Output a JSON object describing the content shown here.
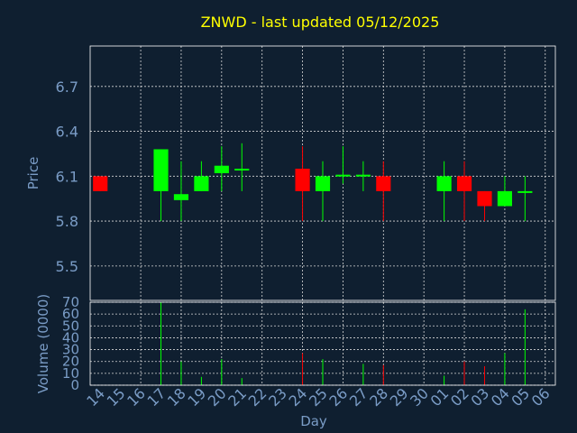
{
  "chart_data": {
    "type": "candlestick",
    "title": "ZNWD - last updated 05/12/2025",
    "xlabel": "Day",
    "ylabel": "Price",
    "volume_label": "Volume (0000)",
    "price_ylim": [
      5.27,
      6.97
    ],
    "price_ticks": [
      5.5,
      5.8,
      6.1,
      6.4,
      6.7
    ],
    "volume_ylim": [
      0,
      70
    ],
    "volume_ticks": [
      0,
      10,
      20,
      30,
      40,
      50,
      60,
      70
    ],
    "grid": true,
    "x_ticks": [
      "14",
      "15",
      "16",
      "17",
      "18",
      "19",
      "20",
      "21",
      "22",
      "23",
      "24",
      "25",
      "26",
      "27",
      "28",
      "29",
      "30",
      "01",
      "02",
      "03",
      "04",
      "05",
      "06"
    ],
    "colors": {
      "up": "#00ff00",
      "down": "#ff0000",
      "title": "#ffff00",
      "axis": "#7a9cc6"
    },
    "candles": [
      {
        "day": "14",
        "open": 6.1,
        "high": 6.1,
        "low": 6.0,
        "close": 6.0,
        "volume": 0
      },
      {
        "day": "17",
        "open": 6.0,
        "high": 6.28,
        "low": 5.8,
        "close": 6.28,
        "volume": 70
      },
      {
        "day": "18",
        "open": 5.94,
        "high": 6.2,
        "low": 5.8,
        "close": 5.98,
        "volume": 20
      },
      {
        "day": "19",
        "open": 6.0,
        "high": 6.2,
        "low": 6.0,
        "close": 6.1,
        "volume": 7
      },
      {
        "day": "20",
        "open": 6.12,
        "high": 6.3,
        "low": 6.0,
        "close": 6.17,
        "volume": 22
      },
      {
        "day": "21",
        "open": 6.14,
        "high": 6.32,
        "low": 6.0,
        "close": 6.15,
        "volume": 6
      },
      {
        "day": "24",
        "open": 6.15,
        "high": 6.3,
        "low": 5.8,
        "close": 6.0,
        "volume": 27
      },
      {
        "day": "25",
        "open": 6.0,
        "high": 6.2,
        "low": 5.8,
        "close": 6.1,
        "volume": 22
      },
      {
        "day": "26",
        "open": 6.1,
        "high": 6.3,
        "low": 6.05,
        "close": 6.11,
        "volume": 0
      },
      {
        "day": "27",
        "open": 6.1,
        "high": 6.2,
        "low": 6.0,
        "close": 6.11,
        "volume": 18
      },
      {
        "day": "28",
        "open": 6.1,
        "high": 6.2,
        "low": 5.8,
        "close": 6.0,
        "volume": 17
      },
      {
        "day": "01",
        "open": 6.0,
        "high": 6.2,
        "low": 5.8,
        "close": 6.1,
        "volume": 8
      },
      {
        "day": "02",
        "open": 6.1,
        "high": 6.2,
        "low": 5.8,
        "close": 6.0,
        "volume": 20
      },
      {
        "day": "03",
        "open": 6.0,
        "high": 6.0,
        "low": 5.8,
        "close": 5.9,
        "volume": 16
      },
      {
        "day": "04",
        "open": 5.9,
        "high": 6.1,
        "low": 5.9,
        "close": 6.0,
        "volume": 27
      },
      {
        "day": "05",
        "open": 5.99,
        "high": 6.1,
        "low": 5.8,
        "close": 6.0,
        "volume": 64
      }
    ]
  }
}
